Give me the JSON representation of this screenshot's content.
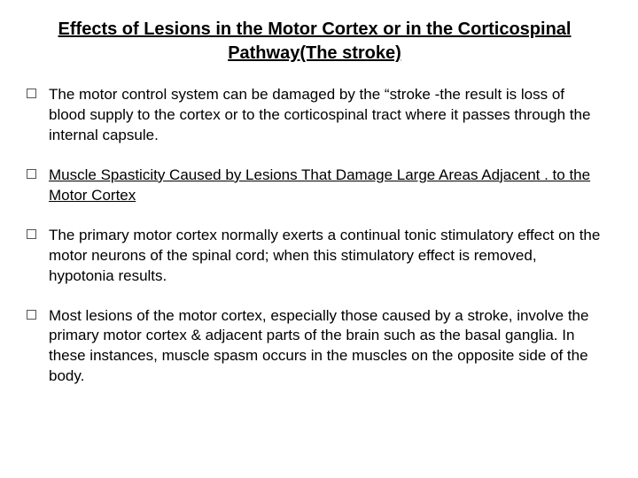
{
  "title": {
    "text": "Effects of Lesions in the Motor Cortex or in the Corticospinal Pathway(The stroke)",
    "fontsize": 20,
    "color": "#000000",
    "underline": true,
    "bold": true
  },
  "bullets": [
    {
      "text": "The motor control system can be damaged by the “stroke -the result is loss of blood supply to the cortex or to the corticospinal tract where it passes through the internal capsule.",
      "underline": false
    },
    {
      "text": " Muscle Spasticity Caused by Lesions That Damage Large Areas Adjacent . to the Motor Cortex",
      "underline": true
    },
    {
      "text": "The primary motor cortex normally exerts a continual tonic stimulatory effect on the motor neurons of the spinal cord; when this stimulatory effect is removed, hypotonia results.",
      "underline": false
    },
    {
      "text": "Most lesions of the motor cortex, especially those caused by a stroke, involve the primary motor cortex & adjacent parts of the brain such as the basal ganglia. In these instances, muscle spasm occurs in the muscles on the opposite side of the body.",
      "underline": false
    }
  ],
  "style": {
    "body_fontsize": 17,
    "body_color": "#000000",
    "bullet_border_color": "#555555",
    "background_color": "#ffffff",
    "font_family": "Comic Sans MS"
  }
}
